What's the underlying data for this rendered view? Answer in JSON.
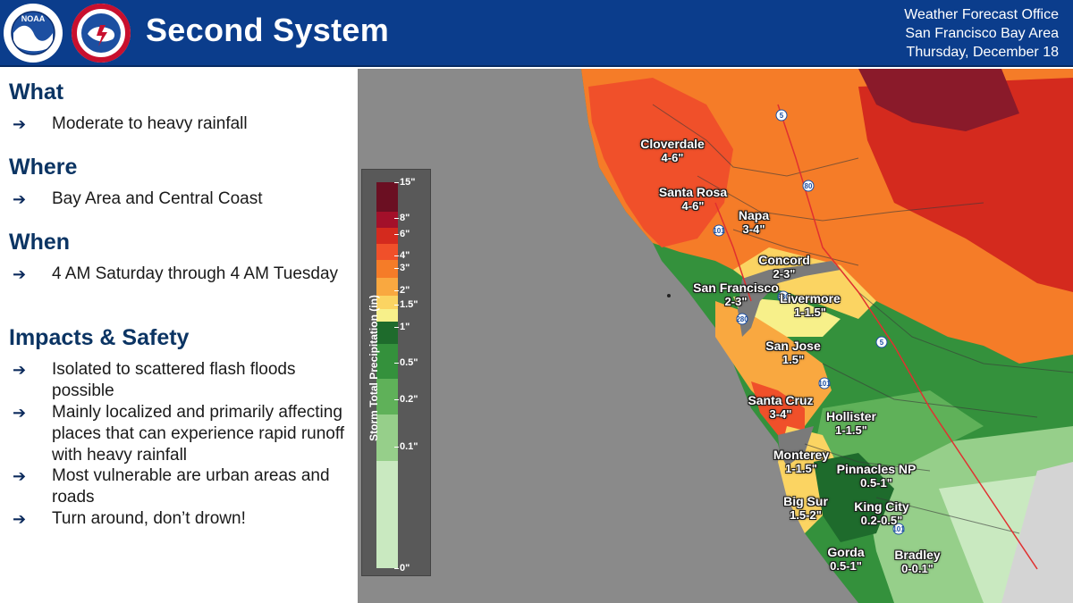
{
  "header": {
    "title": "Second System",
    "office_lines": [
      "Weather Forecast Office",
      "San Francisco Bay Area",
      "Thursday, December 18"
    ],
    "logos": [
      "noaa-logo",
      "nws-logo"
    ],
    "colors": {
      "bar": "#0b3d8c",
      "heading": "#0b3463"
    }
  },
  "sections": [
    {
      "heading": "What",
      "items": [
        "Moderate to heavy rainfall"
      ]
    },
    {
      "heading": "Where",
      "items": [
        "Bay Area and Central Coast"
      ]
    },
    {
      "heading": "When",
      "items": [
        "4 AM Saturday through 4 AM Tuesday"
      ]
    },
    {
      "heading": "Impacts & Safety",
      "items": [
        "Isolated to scattered flash floods possible",
        "Mainly localized and primarily affecting places that can experience rapid runoff with heavy rainfall",
        "Most vulnerable are urban areas and roads",
        "Turn around, don’t drown!"
      ]
    }
  ],
  "bullet_glyph": "➔",
  "legend": {
    "title": "Storm Total Precipitation (in)",
    "ticks": [
      "15\"",
      "8\"",
      "6\"",
      "4\"",
      "3\"",
      "2\"",
      "1.5\"",
      "1\"",
      "0.5\"",
      "0.2\"",
      "0.1\"",
      "0\""
    ],
    "colors": [
      "#6b0f22",
      "#a3102a",
      "#d42a1e",
      "#f0502a",
      "#f57c28",
      "#f9a840",
      "#fbd462",
      "#f7f08a",
      "#1e6b2c",
      "#34913c",
      "#5fb159",
      "#96cf8a",
      "#c9e9c0"
    ]
  },
  "places": [
    {
      "name": "Cloverdale",
      "amount": "4-6\""
    },
    {
      "name": "Santa Rosa",
      "amount": "4-6\""
    },
    {
      "name": "Napa",
      "amount": "3-4\""
    },
    {
      "name": "Concord",
      "amount": "2-3\""
    },
    {
      "name": "San Francisco",
      "amount": "2-3\""
    },
    {
      "name": "Livermore",
      "amount": "1-1.5\""
    },
    {
      "name": "San Jose",
      "amount": "1.5\""
    },
    {
      "name": "Santa Cruz",
      "amount": "3-4\""
    },
    {
      "name": "Hollister",
      "amount": "1-1.5\""
    },
    {
      "name": "Monterey",
      "amount": "1-1.5\""
    },
    {
      "name": "Pinnacles NP",
      "amount": "0.5-1\""
    },
    {
      "name": "Big Sur",
      "amount": "1.5-2\""
    },
    {
      "name": "King City",
      "amount": "0.2-0.5\""
    },
    {
      "name": "Gorda",
      "amount": "0.5-1\""
    },
    {
      "name": "Bradley",
      "amount": "0-0.1\""
    }
  ],
  "highway_shields": [
    "5",
    "80",
    "101",
    "680",
    "280",
    "101",
    "5",
    "101"
  ]
}
